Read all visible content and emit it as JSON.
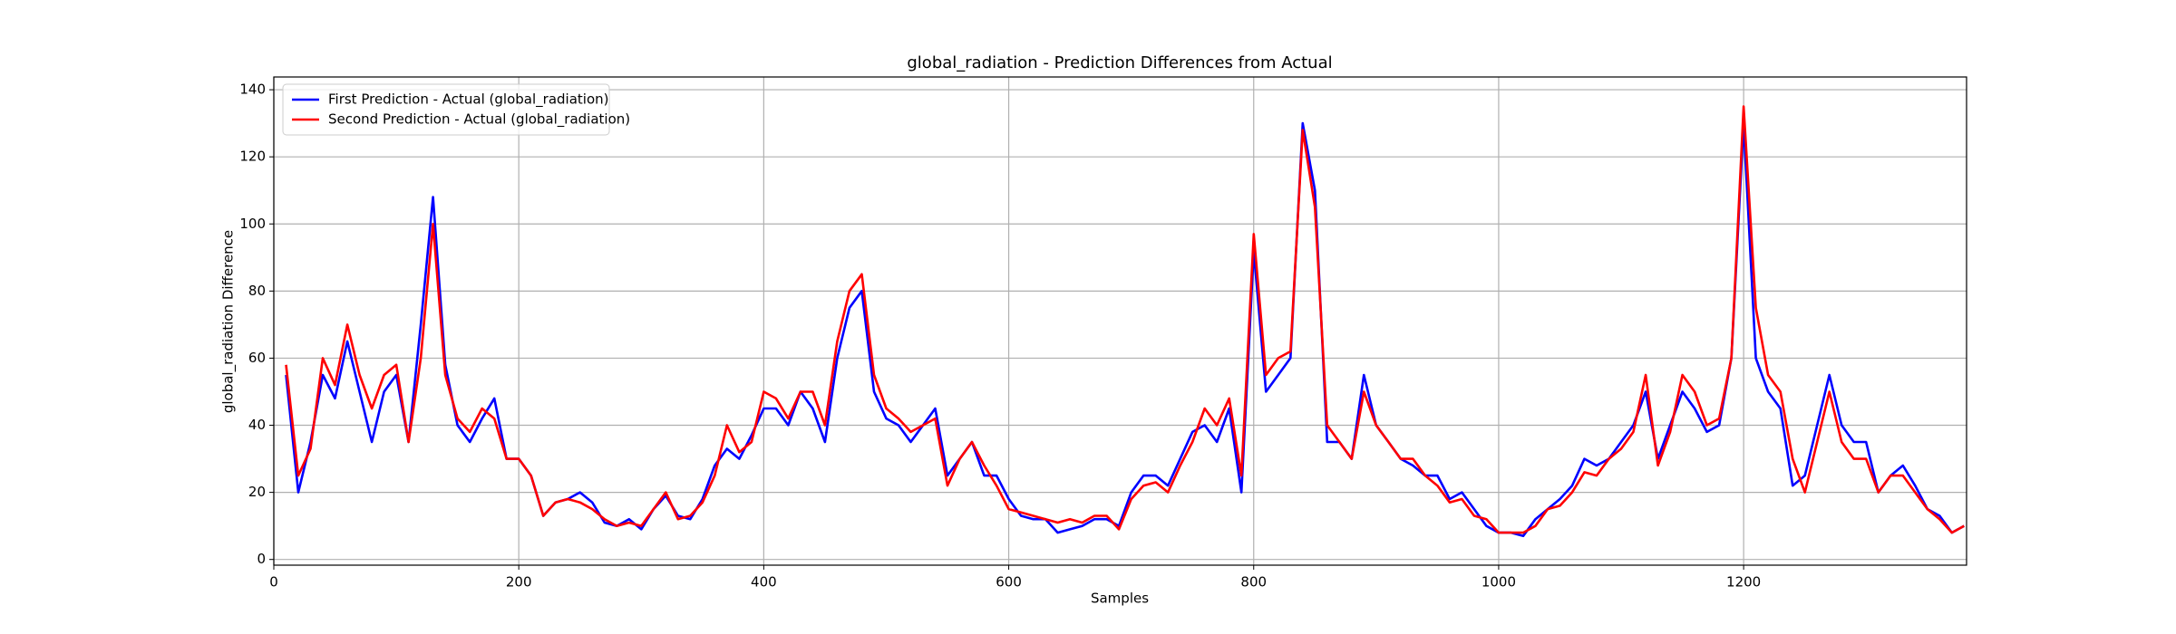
{
  "chart_data": {
    "type": "line",
    "title": "global_radiation - Prediction Differences from Actual",
    "xlabel": "Samples",
    "ylabel": "global_radiation Difference",
    "x": [
      10,
      20,
      30,
      40,
      50,
      60,
      70,
      80,
      90,
      100,
      110,
      120,
      130,
      140,
      150,
      160,
      170,
      180,
      190,
      200,
      210,
      220,
      230,
      240,
      250,
      260,
      270,
      280,
      290,
      300,
      310,
      320,
      330,
      340,
      350,
      360,
      370,
      380,
      390,
      400,
      410,
      420,
      430,
      440,
      450,
      460,
      470,
      480,
      490,
      500,
      510,
      520,
      530,
      540,
      550,
      560,
      570,
      580,
      590,
      600,
      610,
      620,
      630,
      640,
      650,
      660,
      670,
      680,
      690,
      700,
      710,
      720,
      730,
      740,
      750,
      760,
      770,
      780,
      790,
      800,
      810,
      820,
      830,
      840,
      850,
      860,
      870,
      880,
      890,
      900,
      910,
      920,
      930,
      940,
      950,
      960,
      970,
      980,
      990,
      1000,
      1010,
      1020,
      1030,
      1040,
      1050,
      1060,
      1070,
      1080,
      1090,
      1100,
      1110,
      1120,
      1130,
      1140,
      1150,
      1160,
      1170,
      1180,
      1190,
      1200,
      1210,
      1220,
      1230,
      1240,
      1250,
      1260,
      1270,
      1280,
      1290,
      1300,
      1310,
      1320,
      1330,
      1340,
      1350,
      1360,
      1370,
      1380
    ],
    "series": [
      {
        "name": "First Prediction - Actual (global_radiation)",
        "color": "#0000ff",
        "values": [
          55,
          20,
          35,
          55,
          48,
          65,
          50,
          35,
          50,
          55,
          35,
          70,
          108,
          58,
          40,
          35,
          42,
          48,
          30,
          30,
          25,
          13,
          17,
          18,
          20,
          17,
          11,
          10,
          12,
          9,
          15,
          19,
          13,
          12,
          18,
          28,
          33,
          30,
          37,
          45,
          45,
          40,
          50,
          45,
          35,
          60,
          75,
          80,
          50,
          42,
          40,
          35,
          40,
          45,
          25,
          30,
          35,
          25,
          25,
          18,
          13,
          12,
          12,
          8,
          9,
          10,
          12,
          12,
          10,
          20,
          25,
          25,
          22,
          30,
          38,
          40,
          35,
          45,
          20,
          92,
          50,
          55,
          60,
          130,
          110,
          35,
          35,
          30,
          55,
          40,
          35,
          30,
          28,
          25,
          25,
          18,
          20,
          15,
          10,
          8,
          8,
          7,
          12,
          15,
          18,
          22,
          30,
          28,
          30,
          35,
          40,
          50,
          30,
          40,
          50,
          45,
          38,
          40,
          60,
          130,
          60,
          50,
          45,
          22,
          25,
          40,
          55,
          40,
          35,
          35,
          20,
          25,
          28,
          22,
          15,
          13,
          8,
          10
        ]
      },
      {
        "name": "Second Prediction - Actual (global_radiation)",
        "color": "#ff0000",
        "values": [
          58,
          25,
          33,
          60,
          52,
          70,
          55,
          45,
          55,
          58,
          35,
          60,
          100,
          55,
          42,
          38,
          45,
          42,
          30,
          30,
          25,
          13,
          17,
          18,
          17,
          15,
          12,
          10,
          11,
          10,
          15,
          20,
          12,
          13,
          17,
          25,
          40,
          32,
          35,
          50,
          48,
          42,
          50,
          50,
          40,
          65,
          80,
          85,
          55,
          45,
          42,
          38,
          40,
          42,
          22,
          30,
          35,
          28,
          22,
          15,
          14,
          13,
          12,
          11,
          12,
          11,
          13,
          13,
          9,
          18,
          22,
          23,
          20,
          28,
          35,
          45,
          40,
          48,
          25,
          97,
          55,
          60,
          62,
          128,
          105,
          40,
          35,
          30,
          50,
          40,
          35,
          30,
          30,
          25,
          22,
          17,
          18,
          13,
          12,
          8,
          8,
          8,
          10,
          15,
          16,
          20,
          26,
          25,
          30,
          33,
          38,
          55,
          28,
          38,
          55,
          50,
          40,
          42,
          60,
          135,
          75,
          55,
          50,
          30,
          20,
          35,
          50,
          35,
          30,
          30,
          20,
          25,
          25,
          20,
          15,
          12,
          8,
          10
        ]
      }
    ],
    "xlim": [
      0,
      1382
    ],
    "ylim": [
      -1.7,
      143.8
    ],
    "xticks": [
      0,
      200,
      400,
      600,
      800,
      1000,
      1200
    ],
    "yticks": [
      0,
      20,
      40,
      60,
      80,
      100,
      120,
      140
    ],
    "grid": true,
    "legend": "upper-left"
  }
}
